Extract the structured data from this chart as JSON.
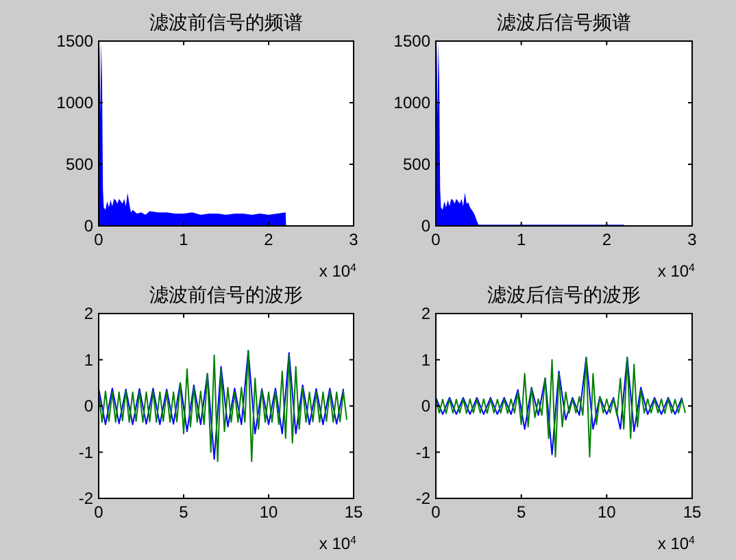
{
  "chart_data": [
    {
      "type": "area",
      "title": "滤波前信号的频谱",
      "xlim": [
        0,
        3
      ],
      "ylim": [
        0,
        1500
      ],
      "xticks": [
        0,
        1,
        2,
        3
      ],
      "yticks": [
        0,
        500,
        1000,
        1500
      ],
      "annotations": [
        "x 10$^{4}$"
      ],
      "series": [
        {
          "color": "#0000ff",
          "x": [
            0,
            0.002,
            0.01,
            0.02,
            0.03,
            0.04,
            0.05,
            0.06,
            0.08,
            0.1,
            0.12,
            0.14,
            0.16,
            0.18,
            0.2,
            0.22,
            0.24,
            0.26,
            0.28,
            0.3,
            0.32,
            0.34,
            0.36,
            0.38,
            0.4,
            0.45,
            0.5,
            0.55,
            0.6,
            0.7,
            0.8,
            0.9,
            1.0,
            1.1,
            1.2,
            1.3,
            1.4,
            1.5,
            1.6,
            1.7,
            1.8,
            1.9,
            2.0,
            2.1,
            2.2,
            2.205
          ],
          "values": [
            0,
            900,
            1500,
            900,
            1500,
            1170,
            300,
            150,
            130,
            200,
            150,
            210,
            160,
            220,
            210,
            180,
            220,
            200,
            180,
            220,
            160,
            270,
            180,
            110,
            130,
            100,
            110,
            90,
            120,
            110,
            110,
            100,
            100,
            110,
            90,
            100,
            100,
            90,
            100,
            100,
            90,
            100,
            90,
            100,
            110,
            0
          ]
        }
      ]
    },
    {
      "type": "area",
      "title": "滤波后信号频谱",
      "xlim": [
        0,
        3
      ],
      "ylim": [
        0,
        1500
      ],
      "xticks": [
        0,
        1,
        2,
        3
      ],
      "yticks": [
        0,
        500,
        1000,
        1500
      ],
      "annotations": [
        "x 10$^{4}$"
      ],
      "series": [
        {
          "color": "#0000ff",
          "x": [
            0,
            0.002,
            0.01,
            0.02,
            0.03,
            0.04,
            0.05,
            0.06,
            0.08,
            0.1,
            0.12,
            0.14,
            0.16,
            0.18,
            0.2,
            0.22,
            0.24,
            0.26,
            0.28,
            0.3,
            0.32,
            0.34,
            0.36,
            0.38,
            0.4,
            0.42,
            0.44,
            0.46,
            0.48,
            0.5,
            0.6,
            1.0,
            1.5,
            2.0,
            2.2,
            2.205
          ],
          "values": [
            0,
            900,
            1500,
            900,
            1500,
            1170,
            300,
            150,
            130,
            200,
            150,
            210,
            160,
            220,
            210,
            180,
            220,
            200,
            180,
            220,
            160,
            270,
            180,
            190,
            150,
            130,
            110,
            80,
            40,
            10,
            10,
            10,
            10,
            10,
            10,
            0
          ]
        }
      ]
    },
    {
      "type": "line",
      "title": "滤波前信号的波形",
      "xlim": [
        0,
        15
      ],
      "ylim": [
        -2,
        2
      ],
      "xticks": [
        0,
        5,
        10,
        15
      ],
      "yticks": [
        -2,
        -1,
        0,
        1,
        2
      ],
      "annotations": [
        "x 10$^{4}$"
      ],
      "series": [
        {
          "color": "#0000ff",
          "x": [
            0,
            0.4,
            0.8,
            1.2,
            1.6,
            2.0,
            2.4,
            2.8,
            3.2,
            3.6,
            4.0,
            4.4,
            4.8,
            5.2,
            5.6,
            6.0,
            6.4,
            6.8,
            7.2,
            7.6,
            8.0,
            8.4,
            8.8,
            9.2,
            9.6,
            10.0,
            10.4,
            10.8,
            11.2,
            11.6,
            12.0,
            12.4,
            12.8,
            13.2,
            13.6,
            14.0,
            14.4
          ],
          "values": [
            0.37,
            -0.4,
            0.38,
            -0.38,
            0.36,
            -0.4,
            0.37,
            -0.39,
            0.38,
            -0.4,
            0.36,
            -0.39,
            0.5,
            -0.55,
            0.45,
            -0.4,
            0.7,
            -1.15,
            0.85,
            -0.45,
            0.38,
            -0.4,
            1.2,
            -0.6,
            0.37,
            -0.4,
            0.38,
            -0.6,
            1.15,
            -0.6,
            0.45,
            -0.4,
            0.37,
            -0.4,
            0.38,
            -0.39,
            0.37
          ]
        },
        {
          "color": "#008000",
          "x": [
            0,
            0.2,
            0.4,
            0.6,
            0.8,
            1.0,
            1.2,
            1.4,
            1.6,
            1.8,
            2.0,
            2.2,
            2.4,
            2.6,
            2.8,
            3.0,
            3.2,
            3.4,
            3.6,
            3.8,
            4.0,
            4.2,
            4.4,
            4.6,
            4.8,
            5.0,
            5.2,
            5.4,
            5.6,
            5.8,
            6.0,
            6.2,
            6.4,
            6.6,
            6.8,
            7.0,
            7.2,
            7.4,
            7.6,
            7.8,
            8.0,
            8.2,
            8.4,
            8.6,
            8.8,
            9.0,
            9.2,
            9.4,
            9.6,
            9.8,
            10.0,
            10.2,
            10.4,
            10.6,
            10.8,
            11.0,
            11.2,
            11.4,
            11.6,
            11.8,
            12.0,
            12.2,
            12.4,
            12.6,
            12.8,
            13.0,
            13.2,
            13.4,
            13.6,
            13.8,
            14.0,
            14.2,
            14.4,
            14.6
          ],
          "values": [
            0.3,
            -0.35,
            0.32,
            -0.33,
            0.3,
            -0.35,
            0.3,
            -0.32,
            0.33,
            -0.35,
            0.3,
            -0.33,
            0.31,
            -0.35,
            0.3,
            -0.34,
            0.32,
            -0.35,
            0.3,
            -0.33,
            0.31,
            -0.35,
            0.3,
            -0.34,
            0.5,
            -0.6,
            0.8,
            -0.45,
            0.4,
            -0.35,
            0.32,
            -0.4,
            0.7,
            -1.0,
            1.1,
            -1.2,
            0.8,
            -0.55,
            0.4,
            -0.35,
            0.3,
            -0.35,
            0.4,
            -0.35,
            1.2,
            -1.2,
            0.6,
            -0.5,
            0.35,
            -0.35,
            0.3,
            -0.35,
            0.32,
            -0.4,
            0.75,
            -0.7,
            1.1,
            -0.8,
            0.85,
            -0.5,
            0.4,
            -0.35,
            0.3,
            -0.34,
            0.31,
            -0.35,
            0.3,
            -0.33,
            0.32,
            -0.35,
            0.3,
            -0.34,
            0.31,
            -0.3
          ]
        }
      ]
    },
    {
      "type": "line",
      "title": "滤波后信号的波形",
      "xlim": [
        0,
        15
      ],
      "ylim": [
        -2,
        2
      ],
      "xticks": [
        0,
        5,
        10,
        15
      ],
      "yticks": [
        -2,
        -1,
        0,
        1,
        2
      ],
      "annotations": [
        "x 10$^{4}$"
      ],
      "series": [
        {
          "color": "#0000ff",
          "x": [
            0,
            0.4,
            0.8,
            1.2,
            1.6,
            2.0,
            2.4,
            2.8,
            3.2,
            3.6,
            4.0,
            4.4,
            4.8,
            5.2,
            5.6,
            6.0,
            6.4,
            6.8,
            7.2,
            7.6,
            8.0,
            8.4,
            8.8,
            9.2,
            9.6,
            10.0,
            10.4,
            10.8,
            11.2,
            11.6,
            12.0,
            12.4,
            12.8,
            13.2,
            13.6,
            14.0,
            14.4
          ],
          "values": [
            0.18,
            -0.18,
            0.18,
            -0.18,
            0.18,
            -0.18,
            0.18,
            -0.18,
            0.18,
            -0.18,
            0.18,
            -0.18,
            0.35,
            -0.5,
            0.4,
            -0.2,
            0.6,
            -1.05,
            0.75,
            -0.3,
            0.18,
            -0.2,
            1.05,
            -0.5,
            0.2,
            -0.18,
            0.18,
            -0.5,
            1.05,
            -0.55,
            0.4,
            -0.18,
            0.18,
            -0.18,
            0.18,
            -0.18,
            0.18
          ]
        },
        {
          "color": "#008000",
          "x": [
            0,
            0.2,
            0.4,
            0.6,
            0.8,
            1.0,
            1.2,
            1.4,
            1.6,
            1.8,
            2.0,
            2.2,
            2.4,
            2.6,
            2.8,
            3.0,
            3.2,
            3.4,
            3.6,
            3.8,
            4.0,
            4.2,
            4.4,
            4.6,
            4.8,
            5.0,
            5.2,
            5.4,
            5.6,
            5.8,
            6.0,
            6.2,
            6.4,
            6.6,
            6.8,
            7.0,
            7.2,
            7.4,
            7.6,
            7.8,
            8.0,
            8.2,
            8.4,
            8.6,
            8.8,
            9.0,
            9.2,
            9.4,
            9.6,
            9.8,
            10.0,
            10.2,
            10.4,
            10.6,
            10.8,
            11.0,
            11.2,
            11.4,
            11.6,
            11.8,
            12.0,
            12.2,
            12.4,
            12.6,
            12.8,
            13.0,
            13.2,
            13.4,
            13.6,
            13.8,
            14.0,
            14.2,
            14.4,
            14.6
          ],
          "values": [
            0.15,
            -0.15,
            0.14,
            -0.16,
            0.15,
            -0.15,
            0.14,
            -0.15,
            0.15,
            -0.16,
            0.15,
            -0.15,
            0.14,
            -0.15,
            0.15,
            -0.16,
            0.15,
            -0.15,
            0.14,
            -0.15,
            0.15,
            -0.16,
            0.15,
            -0.15,
            0.3,
            -0.4,
            0.7,
            -0.45,
            0.4,
            -0.25,
            0.15,
            -0.2,
            0.6,
            -0.7,
            1.0,
            -1.1,
            0.7,
            -0.45,
            0.3,
            -0.15,
            0.14,
            -0.15,
            0.2,
            -0.2,
            1.05,
            -1.1,
            0.7,
            -0.4,
            0.2,
            -0.15,
            0.15,
            -0.15,
            0.15,
            -0.2,
            0.6,
            -0.5,
            1.05,
            -0.7,
            0.9,
            -0.45,
            0.35,
            -0.15,
            0.15,
            -0.15,
            0.14,
            -0.15,
            0.15,
            -0.16,
            0.15,
            -0.15,
            0.14,
            -0.15,
            0.15,
            -0.15
          ]
        }
      ]
    }
  ]
}
